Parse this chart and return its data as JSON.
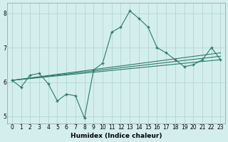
{
  "title": "",
  "xlabel": "Humidex (Indice chaleur)",
  "ylabel": "",
  "bg_color": "#d4eeee",
  "line_color": "#2a7a6a",
  "grid_color": "#b8d8d8",
  "xlim": [
    -0.5,
    23.5
  ],
  "ylim": [
    4.8,
    8.3
  ],
  "xticks": [
    0,
    1,
    2,
    3,
    4,
    5,
    6,
    7,
    8,
    9,
    10,
    11,
    12,
    13,
    14,
    15,
    16,
    17,
    18,
    19,
    20,
    21,
    22,
    23
  ],
  "yticks": [
    5,
    6,
    7,
    8
  ],
  "main_x": [
    0,
    1,
    2,
    3,
    4,
    5,
    6,
    7,
    8,
    9,
    10,
    11,
    12,
    13,
    14,
    15,
    16,
    17,
    18,
    19,
    20,
    21,
    22,
    23
  ],
  "main_y": [
    6.05,
    5.85,
    6.2,
    6.25,
    5.95,
    5.45,
    5.65,
    5.6,
    4.95,
    6.35,
    6.55,
    7.45,
    7.6,
    8.07,
    7.85,
    7.6,
    7.0,
    6.85,
    6.65,
    6.45,
    6.5,
    6.65,
    7.0,
    6.65
  ],
  "line2_x": [
    0,
    23
  ],
  "line2_y": [
    6.05,
    6.85
  ],
  "line3_x": [
    0,
    23
  ],
  "line3_y": [
    6.05,
    6.75
  ],
  "line4_x": [
    0,
    23
  ],
  "line4_y": [
    6.05,
    6.65
  ]
}
